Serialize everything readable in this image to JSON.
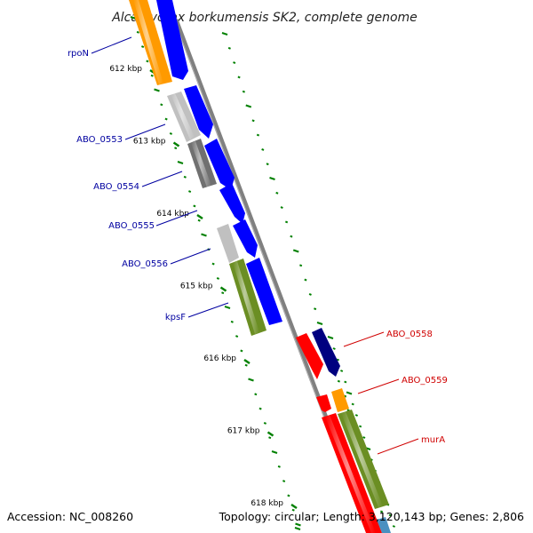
{
  "title": "Alcanivorax borkumensis SK2, complete genome",
  "footer": {
    "accession": "Accession: NC_008260",
    "summary": "Topology: circular; Length: 3,120,143 bp; Genes: 2,806"
  },
  "colors": {
    "blue": "#0000ff",
    "navy": "#000080",
    "red": "#ff0000",
    "orange": "#ff9a00",
    "olive": "#6b8e23",
    "light_gray": "#c0c0c0",
    "dark_gray": "#707070",
    "backbone": "#808080",
    "tick": "#008000",
    "label_blue": "#0000a0",
    "label_red": "#d00000"
  },
  "ticks": [
    "612 kbp",
    "613 kbp",
    "614 kbp",
    "615 kbp",
    "616 kbp",
    "617 kbp",
    "618 kbp"
  ],
  "gene_labels": [
    {
      "text": "rpoN",
      "strand": "left"
    },
    {
      "text": "ABO_0553",
      "strand": "left"
    },
    {
      "text": "ABO_0554",
      "strand": "left"
    },
    {
      "text": "ABO_0555",
      "strand": "left"
    },
    {
      "text": "ABO_0556",
      "strand": "left"
    },
    {
      "text": "kpsF",
      "strand": "left"
    },
    {
      "text": "ABO_0558",
      "strand": "right"
    },
    {
      "text": "ABO_0559",
      "strand": "right"
    },
    {
      "text": "murA",
      "strand": "right"
    }
  ]
}
